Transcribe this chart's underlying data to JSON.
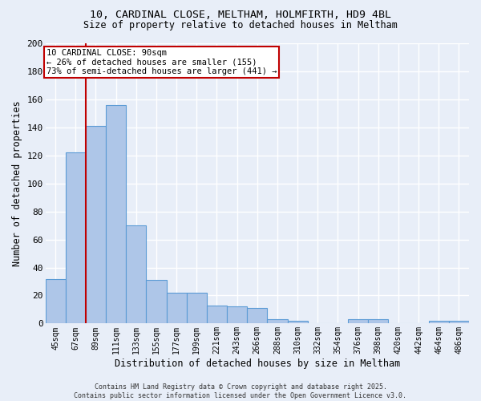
{
  "title1": "10, CARDINAL CLOSE, MELTHAM, HOLMFIRTH, HD9 4BL",
  "title2": "Size of property relative to detached houses in Meltham",
  "xlabel": "Distribution of detached houses by size in Meltham",
  "ylabel": "Number of detached properties",
  "categories": [
    "45sqm",
    "67sqm",
    "89sqm",
    "111sqm",
    "133sqm",
    "155sqm",
    "177sqm",
    "199sqm",
    "221sqm",
    "243sqm",
    "266sqm",
    "288sqm",
    "310sqm",
    "332sqm",
    "354sqm",
    "376sqm",
    "398sqm",
    "420sqm",
    "442sqm",
    "464sqm",
    "486sqm"
  ],
  "values": [
    32,
    122,
    141,
    156,
    70,
    31,
    22,
    22,
    13,
    12,
    11,
    3,
    2,
    0,
    0,
    3,
    3,
    0,
    0,
    2,
    2
  ],
  "bar_color": "#aec6e8",
  "bar_edge_color": "#5b9bd5",
  "background_color": "#e8eef8",
  "grid_color": "#ffffff",
  "vline_x": 1.5,
  "vline_color": "#c00000",
  "annotation_text": "10 CARDINAL CLOSE: 90sqm\n← 26% of detached houses are smaller (155)\n73% of semi-detached houses are larger (441) →",
  "annotation_box_color": "#c00000",
  "footer": "Contains HM Land Registry data © Crown copyright and database right 2025.\nContains public sector information licensed under the Open Government Licence v3.0.",
  "ylim": [
    0,
    200
  ],
  "yticks": [
    0,
    20,
    40,
    60,
    80,
    100,
    120,
    140,
    160,
    180,
    200
  ]
}
